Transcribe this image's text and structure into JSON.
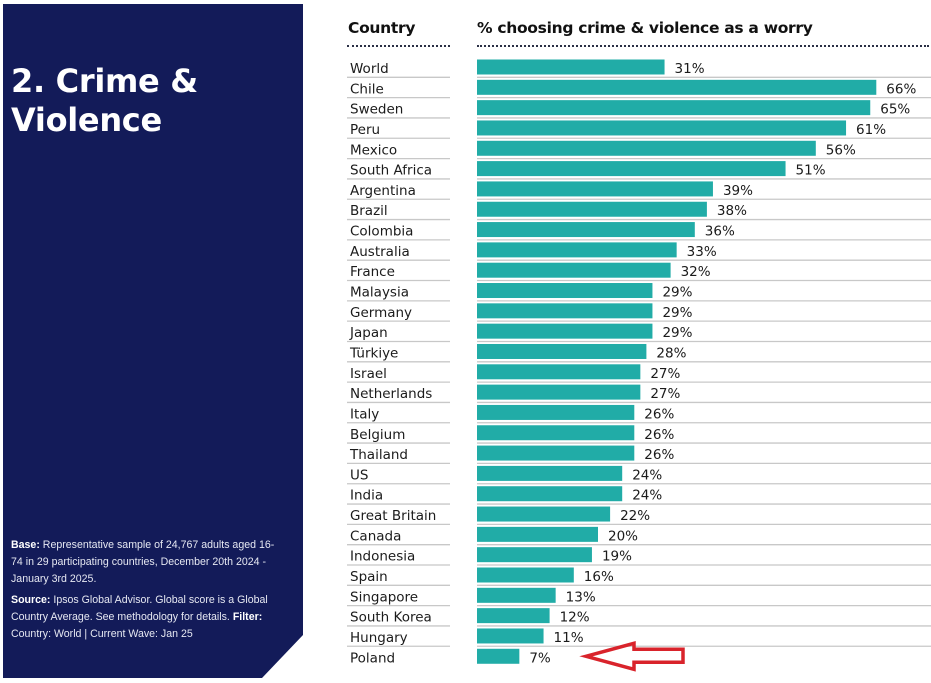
{
  "panel": {
    "title": "2. Crime & Violence",
    "base_label": "Base:",
    "base_text": " Representative sample of 24,767 adults aged 16-74 in 29 participating countries, December 20th 2024 - January 3rd 2025.",
    "source_label": "Source:",
    "source_text": " Ipsos Global Advisor. Global score is a Global Country Average. See methodology for details. ",
    "filter_label": "Filter:",
    "filter_text": " Country: World | Current Wave: Jan 25"
  },
  "colors": {
    "panel": "#131b59",
    "bar": "#21aca7",
    "separator": "#c8c8c8",
    "arrow": "#d9232b"
  },
  "annotation": {
    "type": "arrow-icon",
    "points_to": "Poland",
    "direction": "left"
  },
  "chart_data": {
    "type": "bar",
    "orientation": "horizontal",
    "title": "% choosing crime & violence as a worry",
    "category_header": "Country",
    "xlabel": "",
    "ylabel": "Country",
    "xlim": [
      0,
      70
    ],
    "grid": false,
    "legend": "none",
    "value_suffix": "%",
    "categories": [
      "World",
      "Chile",
      "Sweden",
      "Peru",
      "Mexico",
      "South Africa",
      "Argentina",
      "Brazil",
      "Colombia",
      "Australia",
      "France",
      "Malaysia",
      "Germany",
      "Japan",
      "Türkiye",
      "Israel",
      "Netherlands",
      "Italy",
      "Belgium",
      "Thailand",
      "US",
      "India",
      "Great Britain",
      "Canada",
      "Indonesia",
      "Spain",
      "Singapore",
      "South Korea",
      "Hungary",
      "Poland"
    ],
    "values": [
      31,
      66,
      65,
      61,
      56,
      51,
      39,
      38,
      36,
      33,
      32,
      29,
      29,
      29,
      28,
      27,
      27,
      26,
      26,
      26,
      24,
      24,
      22,
      20,
      19,
      16,
      13,
      12,
      11,
      7
    ],
    "labels": [
      "31%",
      "66%",
      "65%",
      "61%",
      "56%",
      "51%",
      "39%",
      "38%",
      "36%",
      "33%",
      "32%",
      "29%",
      "29%",
      "29%",
      "28%",
      "27%",
      "27%",
      "26%",
      "26%",
      "26%",
      "24%",
      "24%",
      "22%",
      "20%",
      "19%",
      "16%",
      "13%",
      "12%",
      "11%",
      "7%"
    ]
  }
}
